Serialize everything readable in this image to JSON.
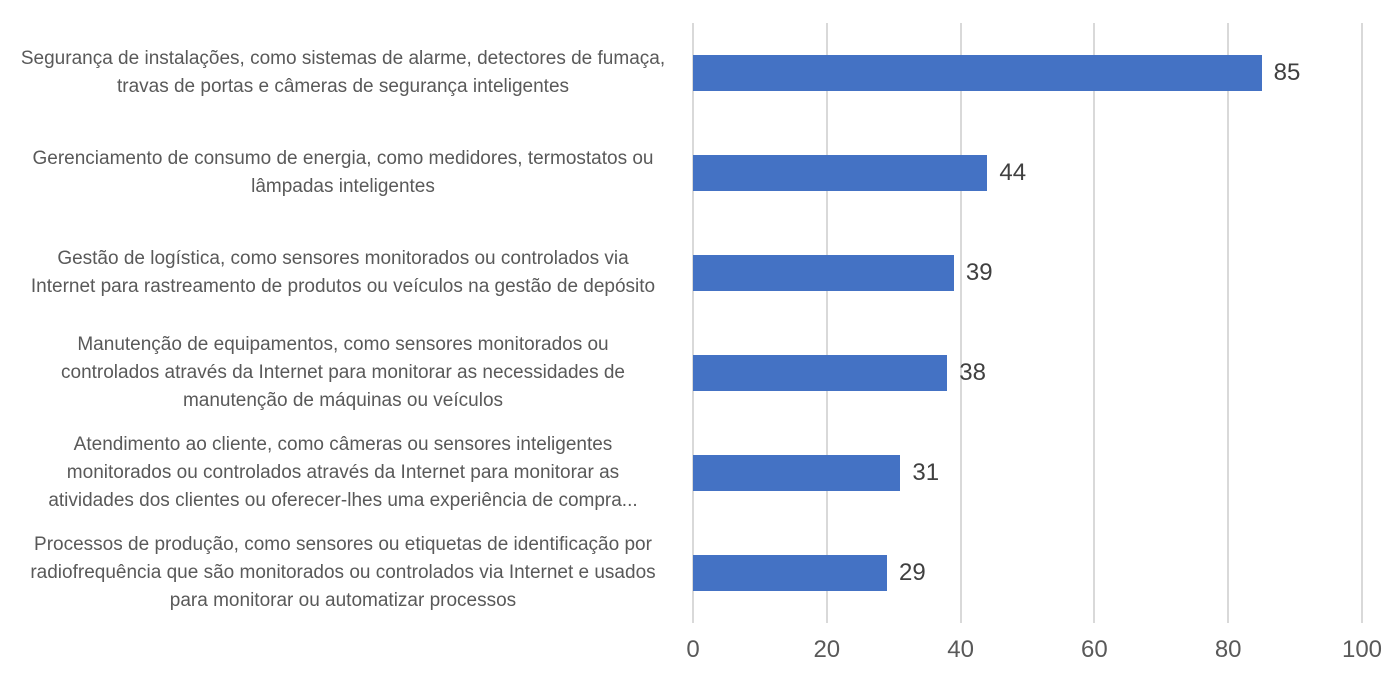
{
  "chart_data": {
    "type": "bar",
    "orientation": "horizontal",
    "title": "",
    "legend": "none",
    "grid": true,
    "categories": [
      "Segurança de instalações, como sistemas de alarme, detectores de fumaça,\ntravas de portas e câmeras de segurança inteligentes",
      "Gerenciamento de consumo de energia, como medidores, termostatos ou\nlâmpadas inteligentes",
      "Gestão de logística, como sensores monitorados ou controlados via\nInternet para rastreamento de produtos ou veículos na gestão de depósito",
      "Manutenção de equipamentos, como sensores monitorados ou\ncontrolados através da Internet para monitorar as necessidades de\nmanutenção de máquinas ou veículos",
      "Atendimento ao cliente, como câmeras ou sensores inteligentes\nmonitorados ou controlados através da Internet para monitorar as\natividades dos clientes ou oferecer-lhes uma experiência de compra...",
      "Processos de produção, como sensores ou etiquetas de identificação por\nradiofrequência que são monitorados ou controlados via Internet e usados\npara monitorar ou automatizar processos"
    ],
    "values": [
      85,
      44,
      39,
      38,
      31,
      29
    ],
    "value_labels": [
      "85",
      "44",
      "39",
      "38",
      "31",
      "29"
    ],
    "xlabel": "",
    "ylabel": "",
    "xlim": [
      0,
      100
    ],
    "x_tick_values": [
      0,
      20,
      40,
      60,
      80,
      100
    ],
    "x_tick_labels": [
      "0",
      "20",
      "40",
      "60",
      "80",
      "100"
    ],
    "colors": {
      "bar": "#4472C4",
      "category_label": "#595959",
      "axis_label": "#595959",
      "value_label": "#404040",
      "gridline": "#D9D9D9",
      "background": "#FFFFFF"
    }
  }
}
